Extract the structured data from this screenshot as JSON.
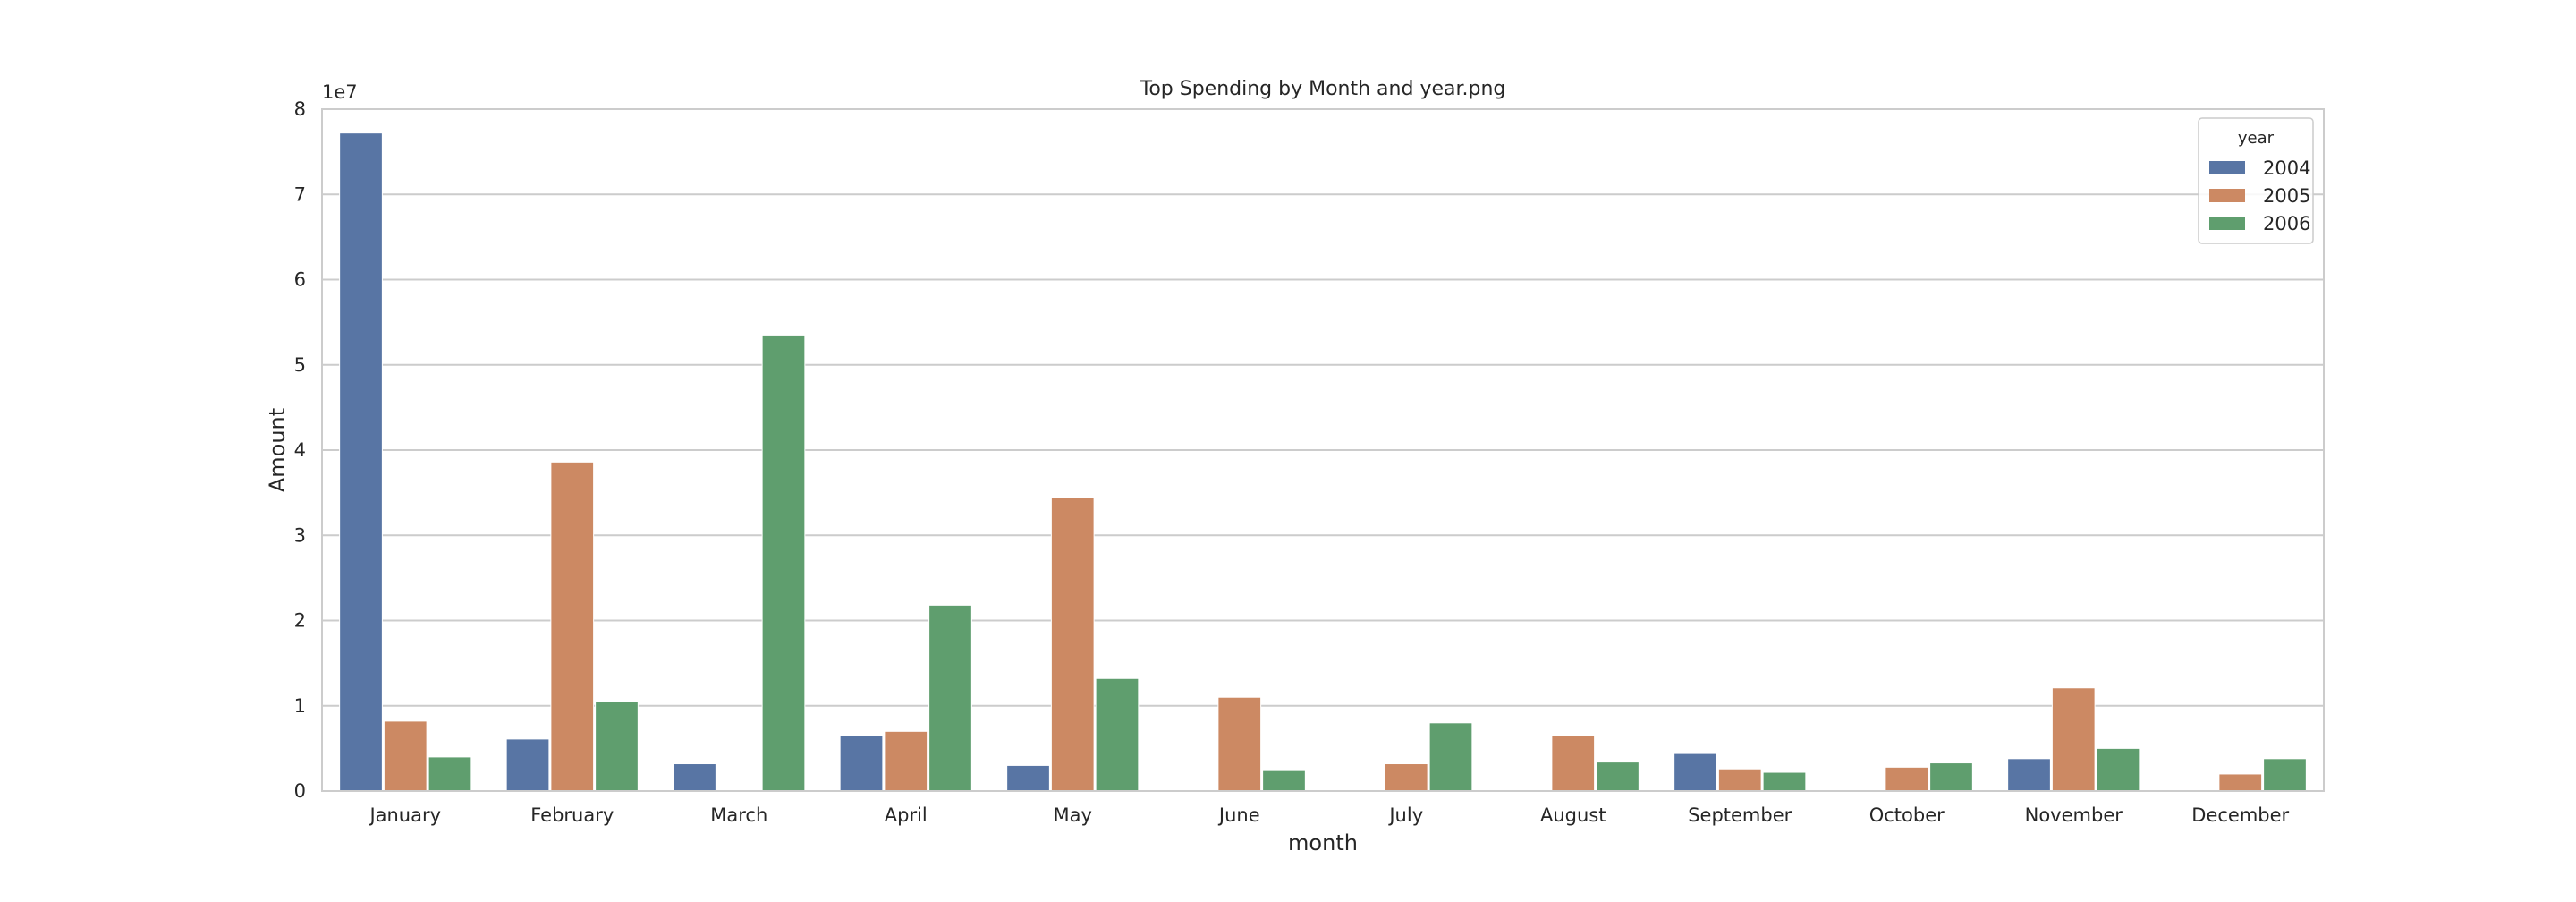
{
  "chart_data": {
    "type": "bar",
    "title": "Top Spending by Month and year.png",
    "xlabel": "month",
    "ylabel": "Amount",
    "y_offset_label": "1e7",
    "ylim": [
      0,
      80000000
    ],
    "y_ticks": [
      0,
      10000000,
      20000000,
      30000000,
      40000000,
      50000000,
      60000000,
      70000000,
      80000000
    ],
    "y_tick_labels": [
      "0",
      "1",
      "2",
      "3",
      "4",
      "5",
      "6",
      "7",
      "8"
    ],
    "grid": true,
    "legend": {
      "title": "year",
      "placement": "top-right"
    },
    "categories": [
      "January",
      "February",
      "March",
      "April",
      "May",
      "June",
      "July",
      "August",
      "September",
      "October",
      "November",
      "December"
    ],
    "series": [
      {
        "name": "2004",
        "color": "#5875a4",
        "values": [
          77200000,
          6100000,
          3200000,
          6500000,
          3000000,
          null,
          null,
          null,
          4400000,
          null,
          3800000,
          null
        ]
      },
      {
        "name": "2005",
        "color": "#cc8963",
        "values": [
          8200000,
          38600000,
          null,
          7000000,
          34400000,
          11000000,
          3200000,
          6500000,
          2600000,
          2800000,
          12100000,
          2000000
        ]
      },
      {
        "name": "2006",
        "color": "#5f9e6e",
        "values": [
          4000000,
          10500000,
          53500000,
          21800000,
          13200000,
          2400000,
          8000000,
          3400000,
          2200000,
          3300000,
          5000000,
          3800000
        ]
      }
    ]
  }
}
